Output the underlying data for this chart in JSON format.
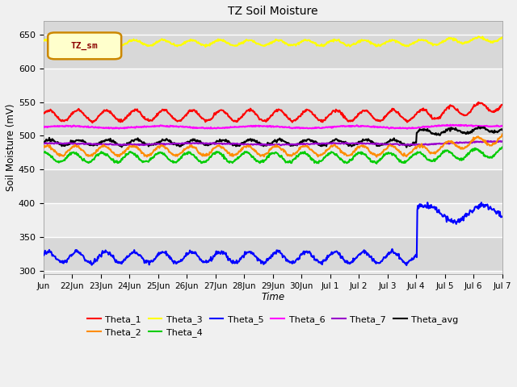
{
  "title": "TZ Soil Moisture",
  "xlabel": "Time",
  "ylabel": "Soil Moisture (mV)",
  "ylim": [
    295,
    670
  ],
  "yticks": [
    300,
    350,
    400,
    450,
    500,
    550,
    600,
    650
  ],
  "legend_label": "TZ_sm",
  "x_tick_labels": [
    "Jun",
    "22Jun",
    "23Jun",
    "24Jun",
    "25Jun",
    "26Jun",
    "27Jun",
    "28Jun",
    "29Jun",
    "30Jun",
    "Jul 1",
    "Jul 2",
    "Jul 3",
    "Jul 4",
    "Jul 5",
    "Jul 6",
    "Jul 7"
  ],
  "n_days": 16,
  "pts_per_day": 48,
  "jump_day": 13,
  "series_order": [
    "Theta_3",
    "Theta_1",
    "Theta_6",
    "Theta_avg",
    "Theta_7",
    "Theta_2",
    "Theta_4",
    "Theta_5"
  ]
}
